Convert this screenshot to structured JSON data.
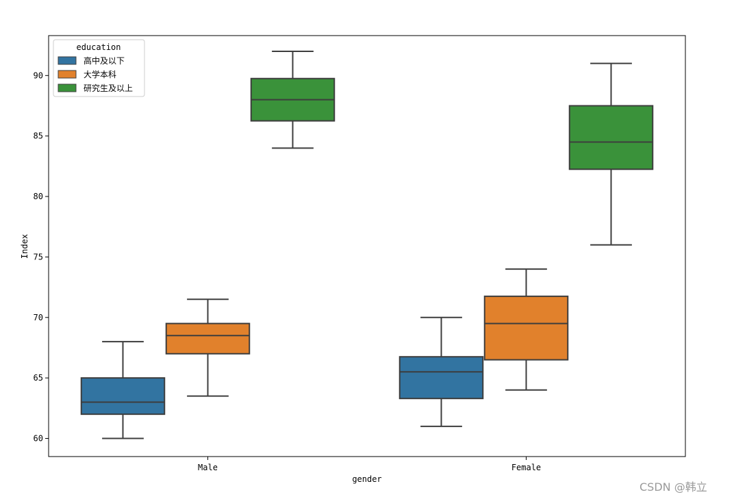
{
  "chart_data": {
    "type": "box",
    "xlabel": "gender",
    "ylabel": "Index",
    "categories": [
      "Male",
      "Female"
    ],
    "ylim": [
      58.5,
      93.3
    ],
    "yticks": [
      60,
      65,
      70,
      75,
      80,
      85,
      90
    ],
    "grid": false,
    "legend": {
      "title": "education",
      "position": "top-left"
    },
    "series": [
      {
        "name": "高中及以下",
        "color": "#3274a1",
        "boxes": [
          {
            "min": 60,
            "q1": 62,
            "median": 63,
            "q3": 65,
            "max": 68
          },
          {
            "min": 61,
            "q1": 63.3,
            "median": 65.5,
            "q3": 66.75,
            "max": 70
          }
        ]
      },
      {
        "name": "大学本科",
        "color": "#e1812c",
        "boxes": [
          {
            "min": 63.5,
            "q1": 67,
            "median": 68.5,
            "q3": 69.5,
            "max": 71.5
          },
          {
            "min": 64,
            "q1": 66.5,
            "median": 69.5,
            "q3": 71.75,
            "max": 74
          }
        ]
      },
      {
        "name": "研究生及以上",
        "color": "#3a923a",
        "boxes": [
          {
            "min": 84,
            "q1": 86.25,
            "median": 88,
            "q3": 89.75,
            "max": 92
          },
          {
            "min": 76,
            "q1": 82.25,
            "median": 84.5,
            "q3": 87.5,
            "max": 91
          }
        ]
      }
    ]
  },
  "watermark": "CSDN @韩立"
}
